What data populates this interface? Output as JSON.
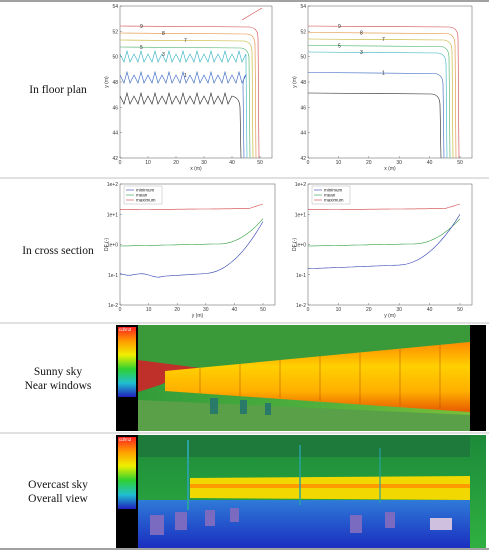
{
  "table": {
    "rows": [
      {
        "label": [
          "In floor plan"
        ],
        "plots": [
          {
            "xlabel": "x (m)",
            "ylabel": "y (m)",
            "xticks": [
              "0",
              "10",
              "20",
              "30",
              "40",
              "50"
            ],
            "yticks": [
              "42",
              "44",
              "46",
              "48",
              "50",
              "52",
              "54"
            ],
            "contour_labels": [
              "9",
              "8",
              "7",
              "5",
              "3",
              "1"
            ]
          },
          {
            "xlabel": "x (m)",
            "ylabel": "y (m)",
            "xticks": [
              "0",
              "10",
              "20",
              "30",
              "40",
              "50"
            ],
            "yticks": [
              "42",
              "44",
              "46",
              "48",
              "50",
              "52",
              "54"
            ],
            "contour_labels": [
              "9",
              "8",
              "7",
              "5",
              "3",
              "1"
            ]
          }
        ]
      },
      {
        "label": [
          "In cross section"
        ],
        "plots": [
          {
            "xlabel": "y (m)",
            "ylabel": "DF (-)",
            "xticks": [
              "0",
              "10",
              "20",
              "30",
              "40",
              "50"
            ],
            "yticks": [
              "1e-2",
              "1e-1",
              "1e+0",
              "1e+1",
              "1e+2"
            ],
            "legend": [
              "minimum",
              "mean",
              "maximum"
            ]
          },
          {
            "xlabel": "y (m)",
            "ylabel": "DF (-)",
            "xticks": [
              "0",
              "10",
              "20",
              "30",
              "40",
              "50"
            ],
            "yticks": [
              "1e-2",
              "1e-1",
              "1e+0",
              "1e+1",
              "1e+2"
            ],
            "legend": [
              "minimum",
              "mean",
              "maximum"
            ]
          }
        ]
      },
      {
        "label": [
          "Sunny sky",
          "Near windows"
        ],
        "scale_unit": "cd/m2"
      },
      {
        "label": [
          "Overcast sky",
          "Overall view"
        ],
        "scale_unit": "cd/m2"
      }
    ]
  }
}
